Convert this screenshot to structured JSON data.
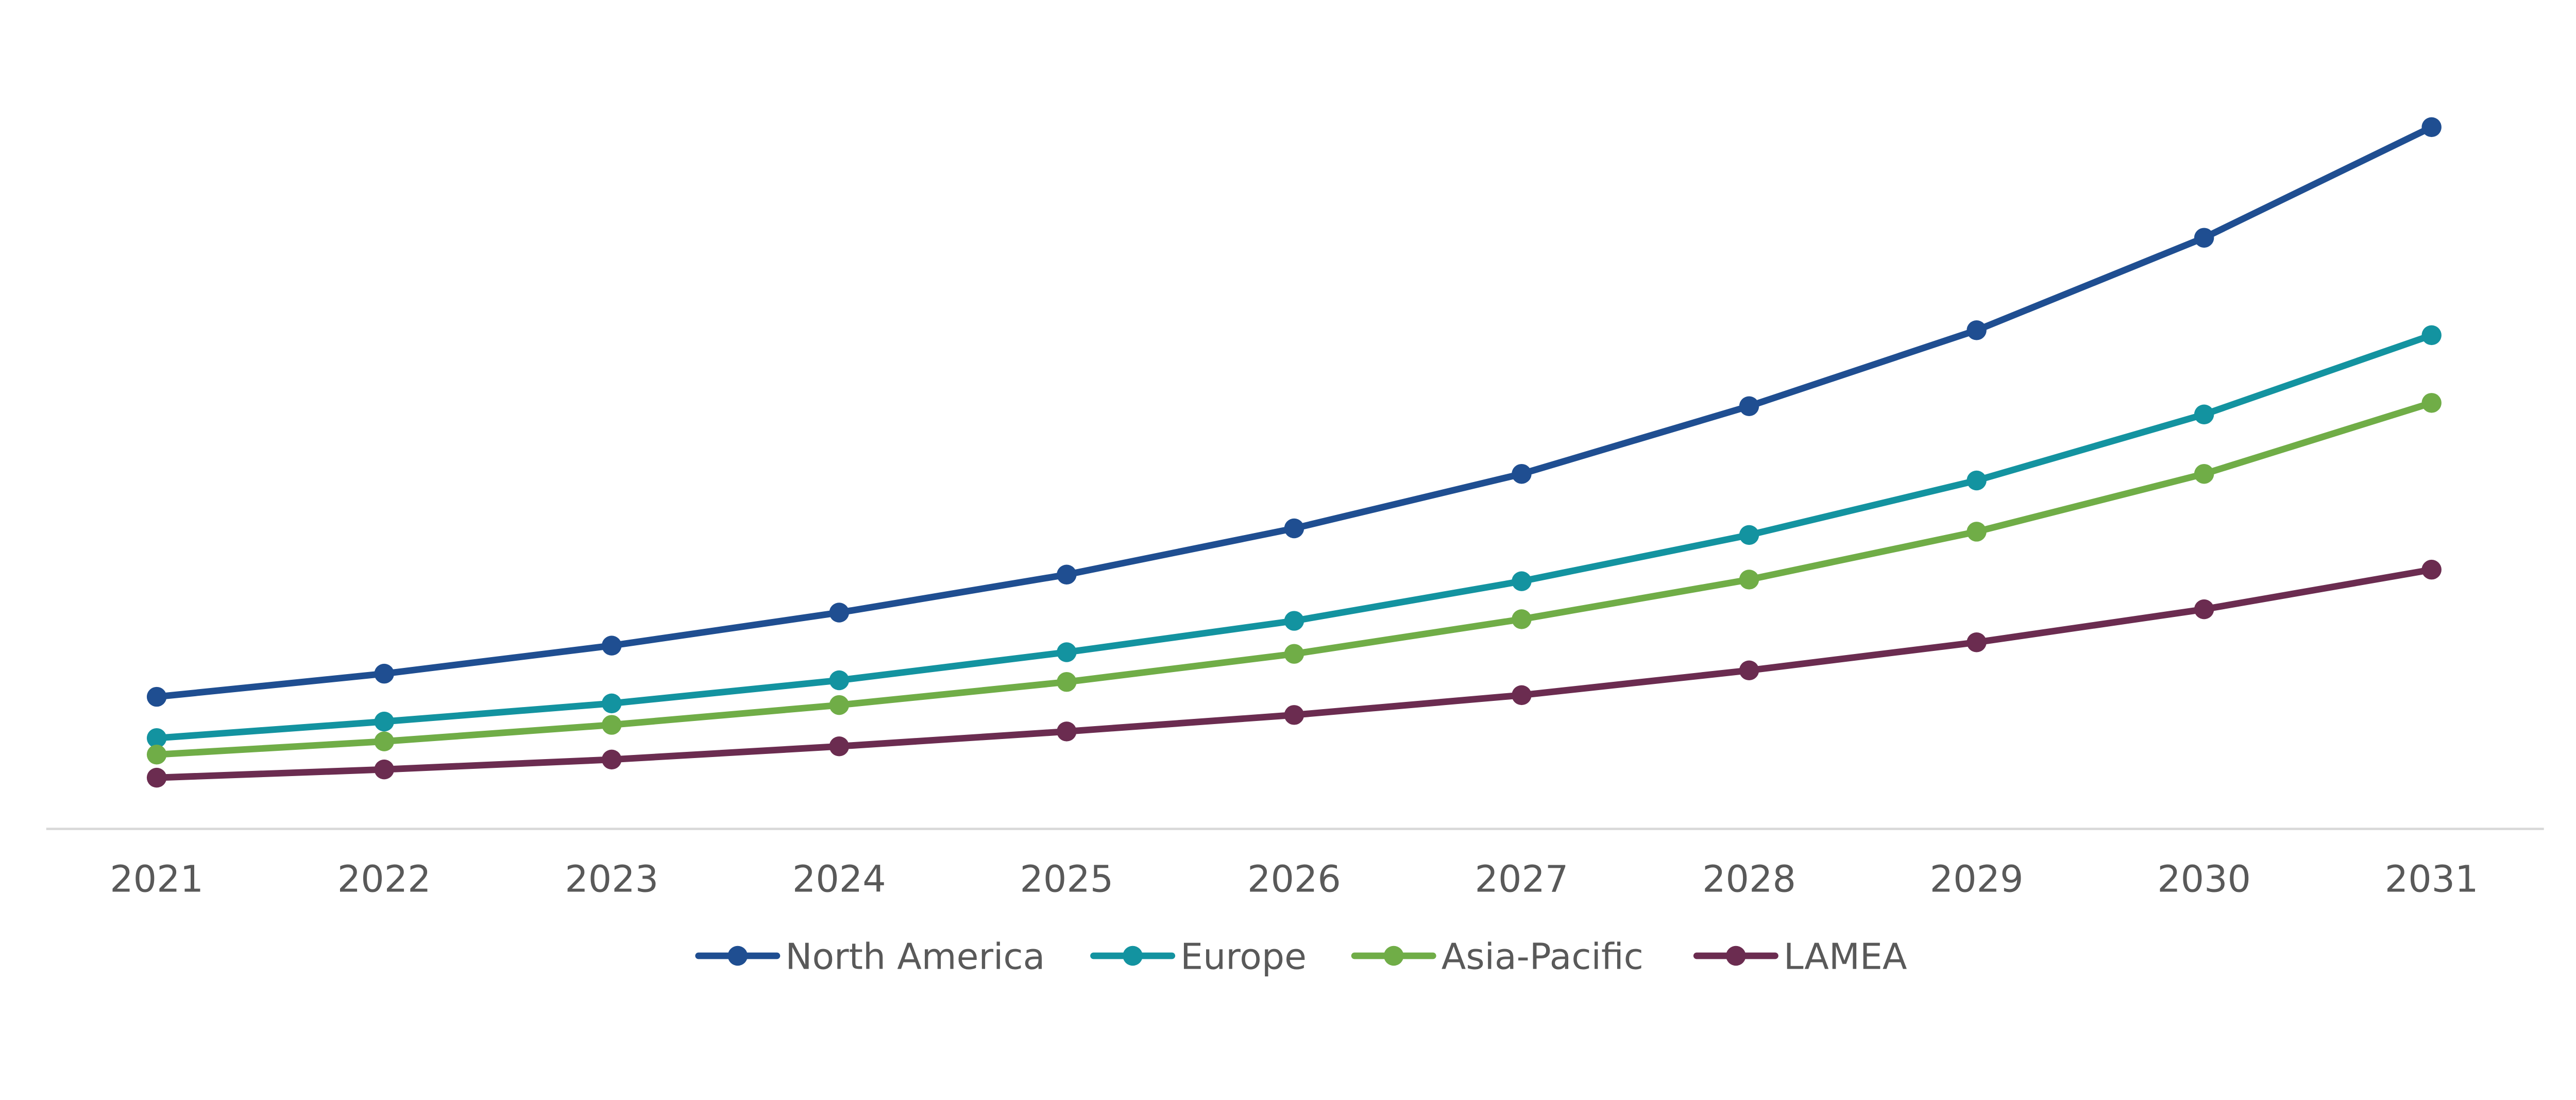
{
  "chart_data": {
    "type": "line",
    "title": "",
    "xlabel": "",
    "ylabel": "",
    "x": [
      "2021",
      "2022",
      "2023",
      "2024",
      "2025",
      "2026",
      "2027",
      "2028",
      "2029",
      "2030",
      "2031"
    ],
    "ylim": [
      0,
      450
    ],
    "y_axis_visible": false,
    "grid": false,
    "legend_position": "bottom",
    "series": [
      {
        "name": "North America",
        "color": "#1F4E91",
        "values": [
          80,
          94,
          111,
          131,
          154,
          182,
          215,
          256,
          302,
          358,
          425
        ]
      },
      {
        "name": "Europe",
        "color": "#1393A0",
        "values": [
          55,
          65,
          76,
          90,
          107,
          126,
          150,
          178,
          211,
          251,
          299
        ]
      },
      {
        "name": "Asia-Pacific",
        "color": "#70AD47",
        "values": [
          45,
          53,
          63,
          75,
          89,
          106,
          127,
          151,
          180,
          215,
          258
        ]
      },
      {
        "name": "LAMEA",
        "color": "#6B2C50",
        "values": [
          31,
          36,
          42,
          50,
          59,
          69,
          81,
          96,
          113,
          133,
          157
        ]
      }
    ]
  }
}
